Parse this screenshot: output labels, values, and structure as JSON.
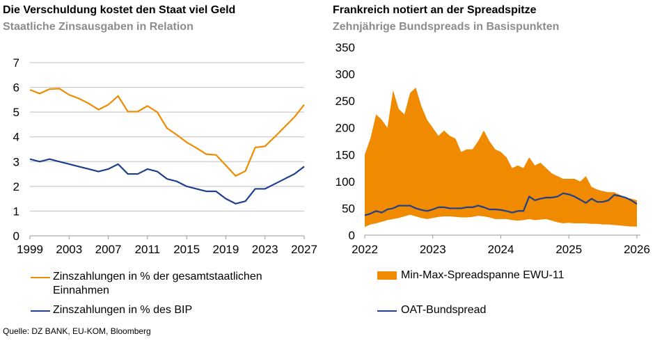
{
  "left": {
    "title": "Die Verschuldung kostet den Staat viel Geld",
    "subtitle": "Staatliche Zinsausgaben in Relation"
  },
  "right": {
    "title": "Frankreich notiert an der Spreadspitze",
    "subtitle": "Zehnjährige Bundspreads in Basispunkten"
  },
  "source": "Quelle: DZ BANK, EU-KOM, Bloomberg",
  "colors": {
    "orange": "#F08A00",
    "blue": "#1F3F8C",
    "grid": "#bfbfbf"
  },
  "chart_data": [
    {
      "type": "line",
      "ylim": [
        0,
        7
      ],
      "yticks": [
        "0",
        "1",
        "2",
        "3",
        "4",
        "5",
        "6",
        "7"
      ],
      "xticks": [
        "1999",
        "2003",
        "2007",
        "2011",
        "2015",
        "2019",
        "2023",
        "2027"
      ],
      "grid": true,
      "legend_placement": "bottom",
      "x": [
        1999,
        2000,
        2001,
        2002,
        2003,
        2004,
        2005,
        2006,
        2007,
        2008,
        2009,
        2010,
        2011,
        2012,
        2013,
        2014,
        2015,
        2016,
        2017,
        2018,
        2019,
        2020,
        2021,
        2022,
        2023,
        2024,
        2025,
        2026,
        2027
      ],
      "series": [
        {
          "name": "Zinszahlungen in % der gesamtstaatlichen Einnahmen",
          "color": "#F08A00",
          "values": [
            5.9,
            5.75,
            5.93,
            5.95,
            5.7,
            5.55,
            5.35,
            5.1,
            5.3,
            5.65,
            5.02,
            5.02,
            5.25,
            5.0,
            4.35,
            4.08,
            3.78,
            3.55,
            3.3,
            3.27,
            2.85,
            2.42,
            2.62,
            3.57,
            3.62,
            4.0,
            4.4,
            4.8,
            5.3
          ]
        },
        {
          "name": "Zinszahlungen in % des BIP",
          "color": "#1F3F8C",
          "values": [
            3.1,
            3.0,
            3.1,
            3.0,
            2.9,
            2.8,
            2.7,
            2.6,
            2.7,
            2.9,
            2.5,
            2.5,
            2.7,
            2.6,
            2.3,
            2.2,
            2.0,
            1.9,
            1.8,
            1.8,
            1.5,
            1.3,
            1.4,
            1.9,
            1.9,
            2.1,
            2.3,
            2.5,
            2.8
          ]
        }
      ]
    },
    {
      "type": "area",
      "ylim": [
        0,
        350
      ],
      "yticks": [
        "0",
        "50",
        "100",
        "150",
        "200",
        "250",
        "300",
        "350"
      ],
      "xticks": [
        "2022",
        "2023",
        "2024",
        "2025",
        "2026"
      ],
      "grid": false,
      "legend_placement": "bottom",
      "x_start": "2022-01",
      "x_step": "month",
      "range_series": {
        "name": "Min-Max-Spreadspanne EWU-11",
        "color": "#F08A00",
        "max": [
          150,
          180,
          225,
          215,
          200,
          270,
          235,
          225,
          265,
          275,
          240,
          215,
          200,
          185,
          195,
          185,
          180,
          155,
          160,
          160,
          175,
          195,
          175,
          160,
          155,
          145,
          125,
          130,
          125,
          145,
          130,
          135,
          125,
          115,
          110,
          105,
          105,
          105,
          100,
          110,
          90,
          85,
          82,
          80,
          80,
          75,
          70,
          68,
          65
        ],
        "min": [
          15,
          20,
          22,
          25,
          28,
          30,
          32,
          35,
          38,
          35,
          32,
          30,
          32,
          34,
          35,
          35,
          34,
          33,
          33,
          34,
          36,
          35,
          33,
          30,
          30,
          30,
          28,
          27,
          28,
          30,
          28,
          29,
          30,
          27,
          24,
          22,
          23,
          22,
          22,
          22,
          21,
          21,
          20,
          20,
          19,
          18,
          17,
          16,
          16
        ]
      },
      "line_series": {
        "name": "OAT-Bundspread",
        "color": "#1F3F8C",
        "values": [
          37,
          40,
          45,
          42,
          48,
          50,
          55,
          55,
          55,
          50,
          47,
          45,
          48,
          52,
          52,
          50,
          50,
          50,
          52,
          52,
          55,
          52,
          48,
          48,
          47,
          45,
          42,
          45,
          45,
          72,
          65,
          68,
          70,
          70,
          72,
          78,
          76,
          72,
          66,
          60,
          68,
          62,
          62,
          65,
          75,
          73,
          70,
          65,
          58
        ]
      }
    }
  ]
}
